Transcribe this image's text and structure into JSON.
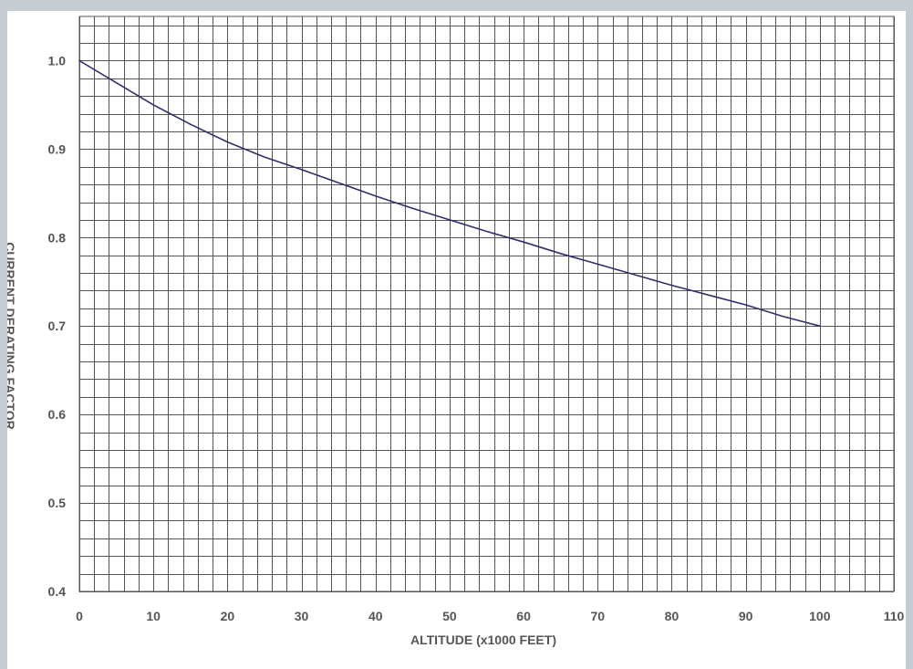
{
  "colors": {
    "background": "#c5cdd3",
    "plot_background": "#ffffff",
    "grid": "#555555",
    "curve": "#2e2e6e",
    "text": "#555555"
  },
  "chart_data": {
    "type": "line",
    "title": "",
    "xlabel": "ALTITUDE (x1000 FEET)",
    "ylabel": "CURRENT DERATING FACTOR",
    "xlim": [
      0,
      110
    ],
    "ylim": [
      0.4,
      1.05
    ],
    "x_ticks": [
      "0",
      "10",
      "20",
      "30",
      "40",
      "50",
      "60",
      "70",
      "80",
      "90",
      "100",
      "110"
    ],
    "y_ticks": [
      "0.4",
      "0.5",
      "0.6",
      "0.7",
      "0.8",
      "0.9",
      "1.0"
    ],
    "minor_grid_x_step": 2,
    "minor_grid_y_step": 0.02,
    "grid": true,
    "legend": "none",
    "series": [
      {
        "x": [
          0,
          5,
          10,
          15,
          20,
          25,
          30,
          35,
          40,
          45,
          50,
          55,
          60,
          65,
          70,
          75,
          80,
          85,
          90,
          95,
          100
        ],
        "y": [
          1.0,
          0.975,
          0.95,
          0.928,
          0.908,
          0.891,
          0.877,
          0.862,
          0.847,
          0.833,
          0.82,
          0.807,
          0.795,
          0.782,
          0.77,
          0.758,
          0.746,
          0.735,
          0.724,
          0.711,
          0.7
        ]
      }
    ]
  }
}
